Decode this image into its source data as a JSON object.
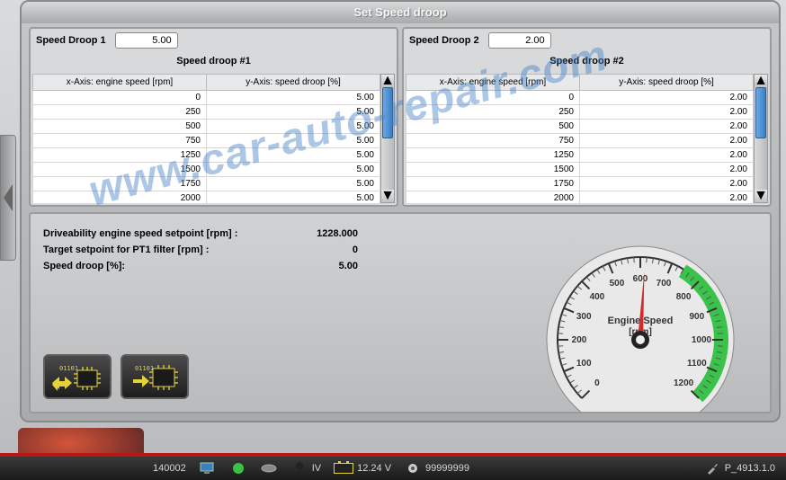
{
  "window": {
    "title": "Set Speed droop"
  },
  "droop1": {
    "label": "Speed Droop 1",
    "value": "5.00",
    "subtitle": "Speed droop #1",
    "col_x": "x-Axis: engine speed [rpm]",
    "col_y": "y-Axis: speed droop [%]",
    "rows": [
      {
        "x": "0",
        "y": "5.00"
      },
      {
        "x": "250",
        "y": "5.00"
      },
      {
        "x": "500",
        "y": "5.00"
      },
      {
        "x": "750",
        "y": "5.00"
      },
      {
        "x": "1250",
        "y": "5.00"
      },
      {
        "x": "1500",
        "y": "5.00"
      },
      {
        "x": "1750",
        "y": "5.00"
      },
      {
        "x": "2000",
        "y": "5.00"
      }
    ]
  },
  "droop2": {
    "label": "Speed Droop 2",
    "value": "2.00",
    "subtitle": "Speed droop #2",
    "col_x": "x-Axis: engine speed [rpm]",
    "col_y": "y-Axis: speed droop [%]",
    "rows": [
      {
        "x": "0",
        "y": "2.00"
      },
      {
        "x": "250",
        "y": "2.00"
      },
      {
        "x": "500",
        "y": "2.00"
      },
      {
        "x": "750",
        "y": "2.00"
      },
      {
        "x": "1250",
        "y": "2.00"
      },
      {
        "x": "1500",
        "y": "2.00"
      },
      {
        "x": "1750",
        "y": "2.00"
      },
      {
        "x": "2000",
        "y": "2.00"
      }
    ]
  },
  "readouts": {
    "line1_label": "Driveability engine speed setpoint [rpm] :",
    "line1_value": "1228.000",
    "line2_label": "Target setpoint for PT1 filter [rpm] :",
    "line2_value": "0",
    "line3_label": "Speed droop [%]:",
    "line3_value": "5.00"
  },
  "gauge": {
    "label1": "Engine Speed",
    "label2": "[rpm]",
    "min": 0,
    "max": 1200,
    "value": 615,
    "ticks": [
      "0",
      "100",
      "200",
      "300",
      "400",
      "500",
      "600",
      "700",
      "800",
      "900",
      "1000",
      "1100",
      "1200"
    ],
    "green_start": 740,
    "green_end": 1200,
    "face_color": "#e9e9ea",
    "needle_color": "#d42c2c",
    "green_color": "#3bc24a",
    "text_color": "#333333"
  },
  "status": {
    "code": "140002",
    "iv": "IV",
    "voltage": "12.24 V",
    "counter": "99999999",
    "version": "P_4913.1.0"
  },
  "colors": {
    "chip_yellow": "#e4d23b"
  },
  "watermark": "www.car-auto-repair.com"
}
